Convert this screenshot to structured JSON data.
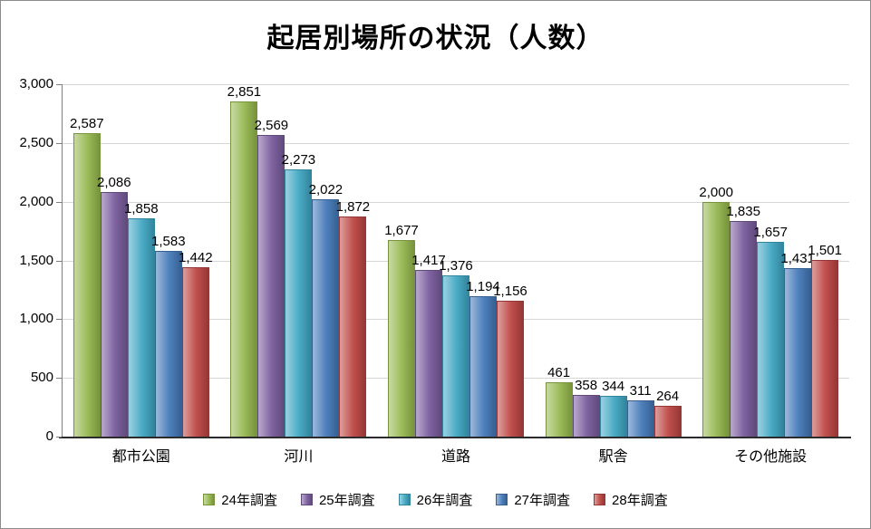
{
  "chart_data": {
    "type": "bar",
    "title": "起居別場所の状況（人数）",
    "categories": [
      "都市公園",
      "河川",
      "道路",
      "駅舎",
      "その他施設"
    ],
    "series": [
      {
        "name": "24年調査",
        "values": [
          2587,
          2851,
          1677,
          461,
          2000
        ],
        "color_light": "#C3D69B",
        "color_base": "#9BBB59",
        "color_dark": "#77933C"
      },
      {
        "name": "25年調査",
        "values": [
          2086,
          2569,
          1417,
          358,
          1835
        ],
        "color_light": "#B3A2C7",
        "color_base": "#8064A2",
        "color_dark": "#604A7B"
      },
      {
        "name": "26年調査",
        "values": [
          1858,
          2273,
          1376,
          344,
          1657
        ],
        "color_light": "#93CDDD",
        "color_base": "#4BACC6",
        "color_dark": "#31859C"
      },
      {
        "name": "27年調査",
        "values": [
          1583,
          2022,
          1194,
          311,
          1431
        ],
        "color_light": "#95B3D7",
        "color_base": "#4F81BD",
        "color_dark": "#366092"
      },
      {
        "name": "28年調査",
        "values": [
          1442,
          1872,
          1156,
          264,
          1501
        ],
        "color_light": "#D99694",
        "color_base": "#C0504D",
        "color_dark": "#953735"
      }
    ],
    "ylim": [
      0,
      3000
    ],
    "y_tick_step": 500,
    "y_tick_labels": [
      "0",
      "500",
      "1,000",
      "1,500",
      "2,000",
      "2,500",
      "3,000"
    ],
    "grid": true,
    "data_labels": true,
    "legend_position": "bottom",
    "xlabel": "",
    "ylabel": ""
  }
}
